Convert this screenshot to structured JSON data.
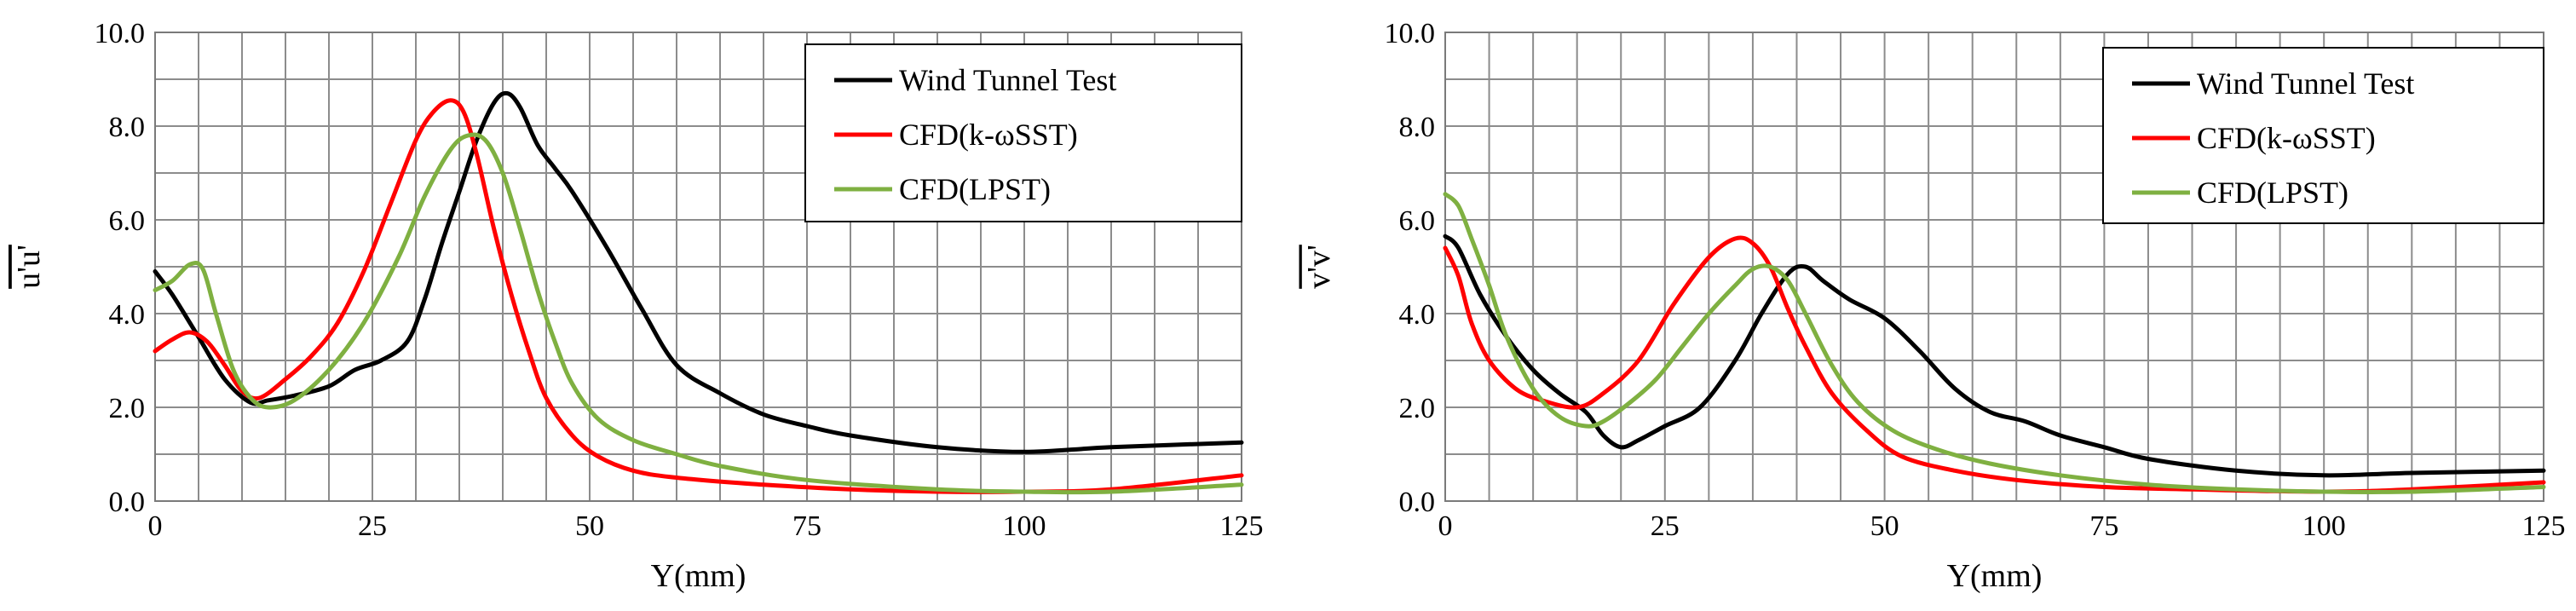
{
  "chart_data": [
    {
      "type": "line",
      "title": "",
      "xlabel": "Y(mm)",
      "ylabel": "u'u'",
      "xlim": [
        0,
        125
      ],
      "ylim": [
        0,
        10
      ],
      "xticks": [
        0,
        25,
        50,
        75,
        100,
        125
      ],
      "yticks": [
        0,
        2,
        4,
        6,
        8,
        10
      ],
      "xtick_labels": [
        "0",
        "25",
        "50",
        "75",
        "100",
        "125"
      ],
      "ytick_labels": [
        "0.0",
        "2.0",
        "4.0",
        "6.0",
        "8.0",
        "10.0"
      ],
      "grid": true,
      "legend_position": "top-right",
      "series": [
        {
          "name": "Wind Tunnel Test",
          "color": "#000000",
          "x": [
            0,
            2,
            5,
            8,
            11,
            13,
            16,
            20,
            23,
            26,
            29,
            31,
            33,
            35,
            37,
            39,
            40.5,
            42,
            44,
            46,
            48,
            52,
            56,
            60,
            65,
            70,
            75,
            80,
            90,
            100,
            110,
            125
          ],
          "y": [
            4.9,
            4.4,
            3.5,
            2.6,
            2.1,
            2.15,
            2.25,
            2.45,
            2.8,
            3.0,
            3.4,
            4.3,
            5.5,
            6.6,
            7.7,
            8.5,
            8.7,
            8.4,
            7.6,
            7.1,
            6.6,
            5.4,
            4.1,
            2.9,
            2.3,
            1.85,
            1.6,
            1.4,
            1.15,
            1.05,
            1.15,
            1.25
          ]
        },
        {
          "name": "CFD(k-ωSST)",
          "color": "#ff0000",
          "x": [
            0,
            2,
            4,
            6,
            8,
            10,
            12,
            15,
            18,
            21,
            24,
            27,
            30,
            32,
            34,
            35.5,
            37,
            39,
            41,
            43,
            45,
            48,
            51,
            55,
            60,
            70,
            80,
            90,
            100,
            110,
            125
          ],
          "y": [
            3.2,
            3.45,
            3.6,
            3.4,
            2.9,
            2.35,
            2.2,
            2.6,
            3.1,
            3.8,
            4.9,
            6.3,
            7.7,
            8.3,
            8.55,
            8.3,
            7.4,
            5.8,
            4.4,
            3.2,
            2.2,
            1.4,
            0.95,
            0.65,
            0.5,
            0.35,
            0.25,
            0.2,
            0.2,
            0.25,
            0.55
          ]
        },
        {
          "name": "CFD(LPST)",
          "color": "#7fb041",
          "x": [
            0,
            2,
            4,
            5.5,
            7,
            9,
            11,
            13,
            16,
            20,
            24,
            28,
            31,
            34,
            36,
            38,
            40,
            42,
            44,
            46,
            48,
            51,
            55,
            60,
            65,
            75,
            90,
            100,
            110,
            125
          ],
          "y": [
            4.5,
            4.7,
            5.05,
            4.95,
            4.0,
            2.8,
            2.2,
            2.0,
            2.15,
            2.8,
            3.8,
            5.2,
            6.5,
            7.5,
            7.8,
            7.7,
            7.0,
            5.8,
            4.5,
            3.4,
            2.5,
            1.75,
            1.3,
            1.0,
            0.75,
            0.45,
            0.25,
            0.2,
            0.2,
            0.35
          ]
        }
      ]
    },
    {
      "type": "line",
      "title": "",
      "xlabel": "Y(mm)",
      "ylabel": "v'v'",
      "xlim": [
        0,
        125
      ],
      "ylim": [
        0,
        10
      ],
      "xticks": [
        0,
        25,
        50,
        75,
        100,
        125
      ],
      "yticks": [
        0,
        2,
        4,
        6,
        8,
        10
      ],
      "xtick_labels": [
        "0",
        "25",
        "50",
        "75",
        "100",
        "125"
      ],
      "ytick_labels": [
        "0.0",
        "2.0",
        "4.0",
        "6.0",
        "8.0",
        "10.0"
      ],
      "grid": true,
      "legend_position": "top-right",
      "series": [
        {
          "name": "Wind Tunnel Test",
          "color": "#000000",
          "x": [
            0,
            1.5,
            4,
            7,
            10,
            13,
            16,
            18,
            20,
            22,
            25,
            29,
            33,
            36,
            39,
            41,
            43,
            46,
            50,
            54,
            58,
            62,
            66,
            70,
            75,
            80,
            90,
            100,
            110,
            125
          ],
          "y": [
            5.65,
            5.4,
            4.4,
            3.5,
            2.8,
            2.3,
            1.9,
            1.4,
            1.15,
            1.3,
            1.6,
            2.0,
            3.0,
            4.0,
            4.85,
            5.0,
            4.7,
            4.3,
            3.9,
            3.2,
            2.4,
            1.9,
            1.7,
            1.4,
            1.15,
            0.9,
            0.65,
            0.55,
            0.6,
            0.65
          ]
        },
        {
          "name": "CFD(k-ωSST)",
          "color": "#ff0000",
          "x": [
            0,
            1.5,
            3,
            5,
            8,
            11,
            15,
            18,
            22,
            26,
            30,
            33,
            35,
            37,
            39,
            41,
            44,
            48,
            52,
            58,
            65,
            75,
            85,
            100,
            110,
            125
          ],
          "y": [
            5.4,
            4.8,
            3.8,
            3.0,
            2.4,
            2.15,
            2.0,
            2.3,
            3.0,
            4.2,
            5.2,
            5.6,
            5.5,
            5.0,
            4.1,
            3.3,
            2.3,
            1.5,
            0.95,
            0.65,
            0.45,
            0.3,
            0.25,
            0.2,
            0.25,
            0.4
          ]
        },
        {
          "name": "CFD(LPST)",
          "color": "#7fb041",
          "x": [
            0,
            1.5,
            3,
            5,
            7,
            10,
            13,
            16,
            18,
            21,
            24,
            27,
            30,
            33,
            35,
            37,
            39,
            41,
            44,
            47,
            51,
            56,
            62,
            70,
            80,
            90,
            100,
            110,
            125
          ],
          "y": [
            6.55,
            6.3,
            5.6,
            4.6,
            3.5,
            2.4,
            1.8,
            1.6,
            1.7,
            2.1,
            2.6,
            3.3,
            4.0,
            4.6,
            4.95,
            5.0,
            4.7,
            4.0,
            2.9,
            2.1,
            1.5,
            1.1,
            0.8,
            0.55,
            0.35,
            0.25,
            0.2,
            0.2,
            0.3
          ]
        }
      ]
    }
  ]
}
